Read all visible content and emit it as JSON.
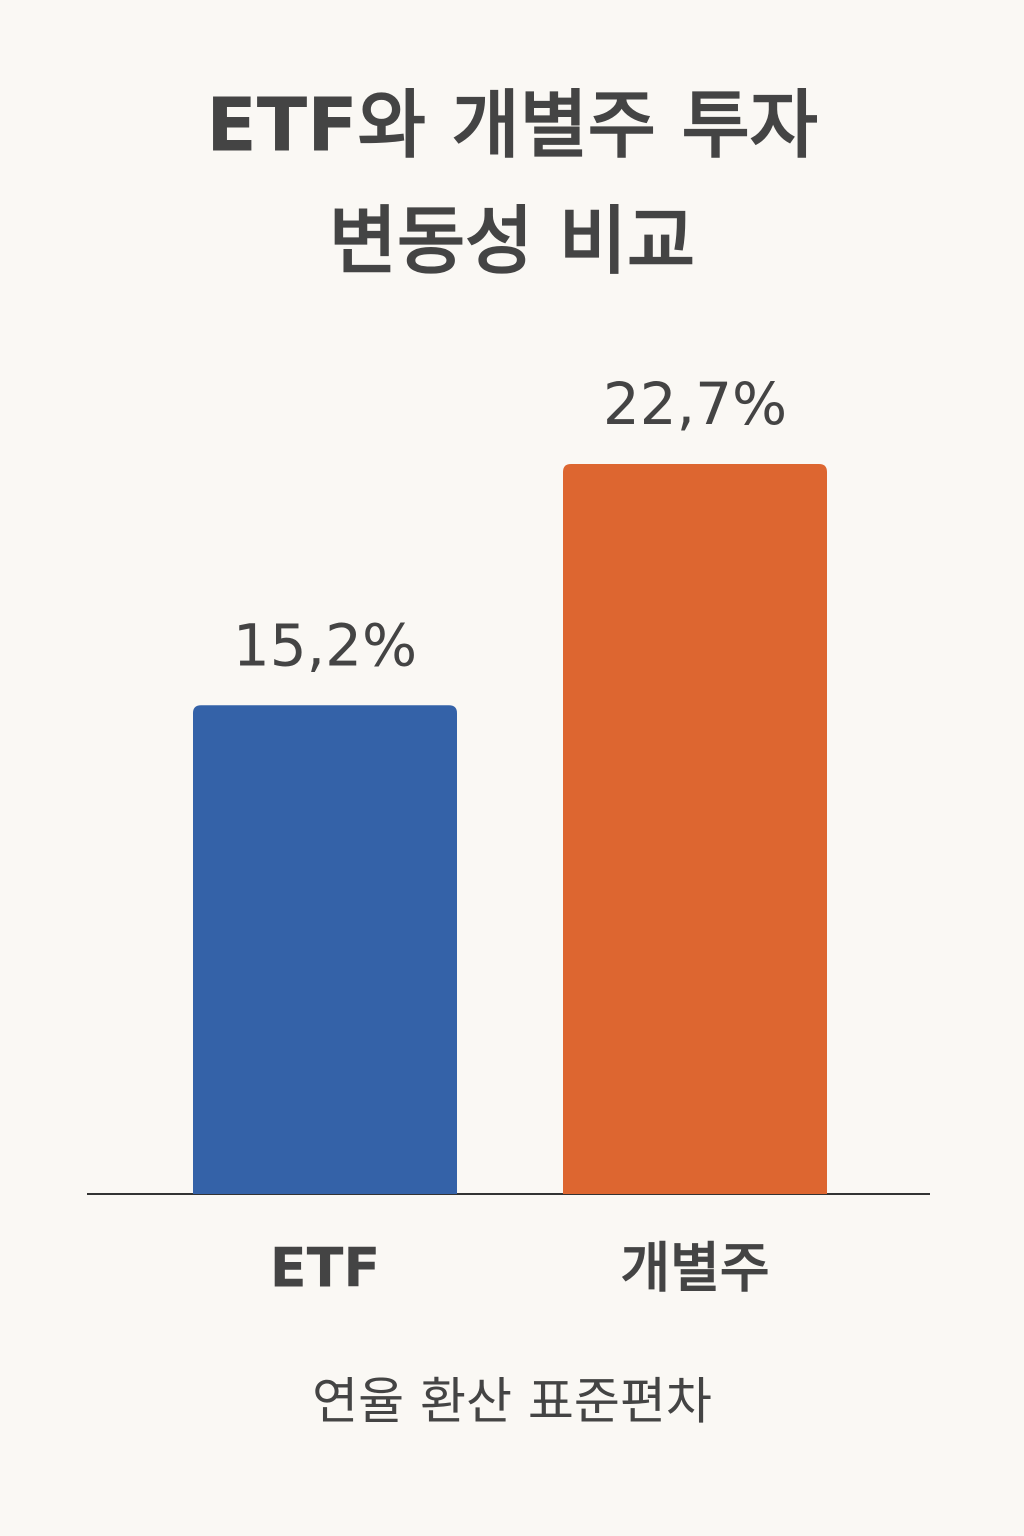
{
  "chart_data": {
    "type": "bar",
    "title": [
      "ETF와 개별주 투자",
      "변동성 비교"
    ],
    "categories": [
      "ETF",
      "개별주"
    ],
    "values": [
      15.2,
      22.7
    ],
    "value_labels": [
      "15,2%",
      "22,7%"
    ],
    "colors": [
      "#3462a8",
      "#dd6630"
    ],
    "x_label": "연율 환산 표준편차"
  }
}
